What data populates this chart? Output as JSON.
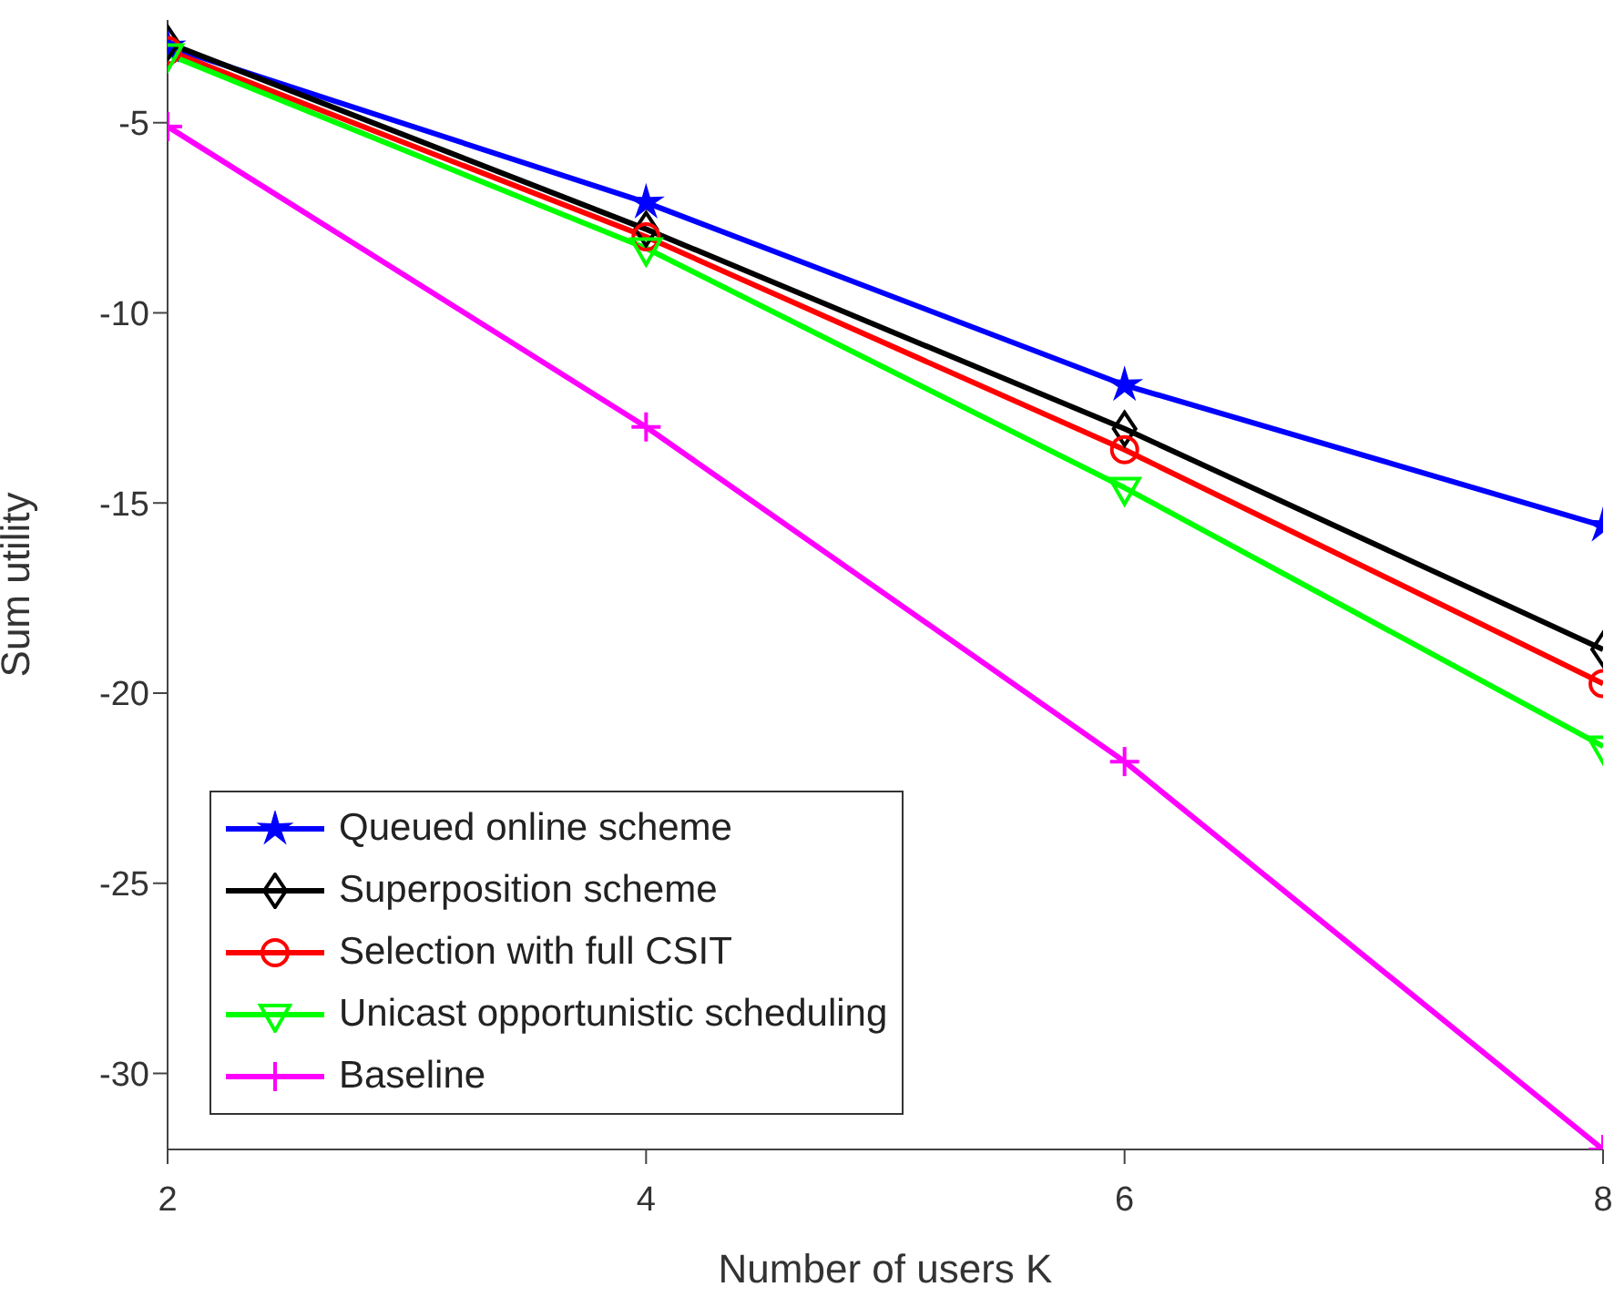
{
  "chart_data": {
    "type": "line",
    "xlabel": "Number of users K",
    "ylabel": "Sum utility",
    "x": [
      2,
      4,
      6,
      8
    ],
    "xlim": [
      2,
      8
    ],
    "xticks": [
      2,
      4,
      6,
      8
    ],
    "ylim": [
      -32,
      -2.3
    ],
    "yticks": [
      -30,
      -25,
      -20,
      -15,
      -10,
      -5
    ],
    "grid": false,
    "legend": "bottom left",
    "line_style": "solid",
    "series": [
      {
        "name": "Queued online scheme",
        "color": "#0000ff",
        "marker": "star",
        "values": [
          -3.0,
          -7.1,
          -11.9,
          -15.6
        ]
      },
      {
        "name": "Superposition scheme",
        "color": "#000000",
        "marker": "diamond",
        "values": [
          -2.9,
          -7.8,
          -13.05,
          -18.85
        ]
      },
      {
        "name": "Selection with full CSIT",
        "color": "#ff0000",
        "marker": "circle",
        "values": [
          -3.1,
          -8.0,
          -13.6,
          -19.75
        ]
      },
      {
        "name": "Unicast opportunistic scheduling",
        "color": "#00ff00",
        "marker": "triangle",
        "values": [
          -3.2,
          -8.3,
          -14.6,
          -21.4
        ]
      },
      {
        "name": "Baseline",
        "color": "#ff00ff",
        "marker": "cross",
        "values": [
          -5.1,
          -13.0,
          -21.8,
          -32.0
        ]
      }
    ]
  }
}
